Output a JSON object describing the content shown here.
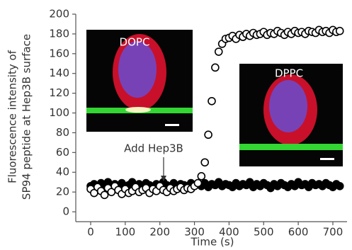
{
  "chart_data": {
    "type": "scatter",
    "y_label_lines": [
      "Fluorescence intensity of",
      "SP94 peptide at Hep3B surface"
    ],
    "x_label": "Time (s)",
    "annotation": "Add Hep3B",
    "x": [
      0,
      10,
      20,
      30,
      40,
      50,
      60,
      70,
      80,
      90,
      100,
      110,
      120,
      130,
      140,
      150,
      160,
      170,
      180,
      190,
      200,
      210,
      220,
      230,
      240,
      250,
      260,
      270,
      280,
      290,
      300,
      310,
      320,
      330,
      340,
      350,
      360,
      370,
      380,
      390,
      400,
      410,
      420,
      430,
      440,
      450,
      460,
      470,
      480,
      490,
      500,
      510,
      520,
      530,
      540,
      550,
      560,
      570,
      580,
      590,
      600,
      610,
      620,
      630,
      640,
      650,
      660,
      670,
      680,
      690,
      700,
      710,
      720
    ],
    "series": [
      {
        "name": "DPPC",
        "color": "#000000",
        "filled": true,
        "values": [
          26,
          28,
          24,
          29,
          27,
          30,
          25,
          28,
          26,
          29,
          24,
          27,
          30,
          26,
          28,
          25,
          29,
          27,
          24,
          28,
          26,
          30,
          27,
          25,
          29,
          26,
          28,
          27,
          25,
          29,
          27,
          28,
          26,
          29,
          25,
          28,
          27,
          30,
          26,
          28,
          27,
          25,
          29,
          26,
          28,
          27,
          30,
          25,
          28,
          26,
          29,
          27,
          24,
          28,
          26,
          29,
          27,
          25,
          28,
          26,
          30,
          27,
          28,
          25,
          29,
          27,
          28,
          26,
          29,
          27,
          25,
          28,
          26
        ]
      },
      {
        "name": "DOPC",
        "color": "#000000",
        "filled": false,
        "values": [
          23,
          19,
          25,
          21,
          17,
          24,
          20,
          26,
          22,
          18,
          23,
          19,
          21,
          25,
          20,
          22,
          24,
          19,
          23,
          21,
          26,
          22,
          20,
          24,
          21,
          23,
          25,
          22,
          24,
          23,
          26,
          29,
          36,
          50,
          78,
          112,
          146,
          162,
          170,
          175,
          176,
          178,
          175,
          179,
          177,
          180,
          178,
          181,
          179,
          180,
          182,
          179,
          181,
          180,
          183,
          181,
          179,
          182,
          180,
          183,
          181,
          182,
          180,
          183,
          182,
          181,
          184,
          182,
          183,
          181,
          184,
          182,
          183
        ]
      }
    ],
    "xlim": [
      -43,
      741
    ],
    "ylim": [
      -10,
      200
    ],
    "xticks": [
      0,
      100,
      200,
      300,
      400,
      500,
      600,
      700
    ],
    "yticks": [
      0,
      20,
      40,
      60,
      80,
      100,
      120,
      140,
      160,
      180,
      200
    ]
  }
}
